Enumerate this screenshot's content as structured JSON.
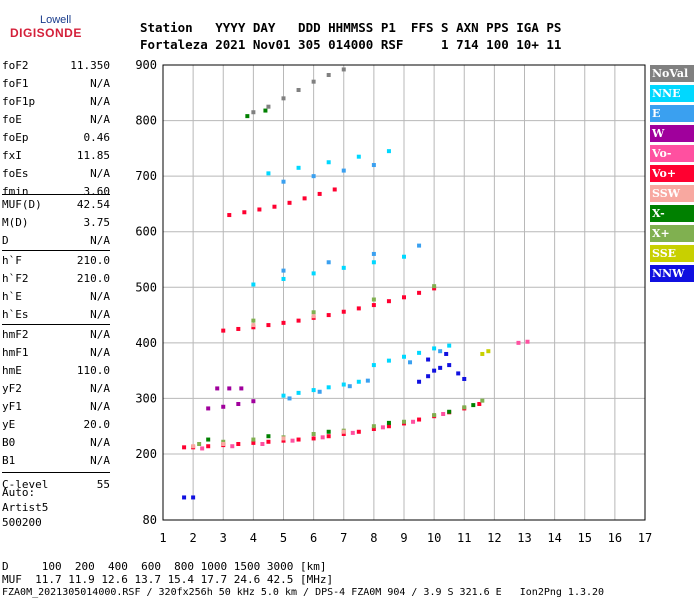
{
  "logo": {
    "top": "Lowell",
    "main": "DIGISONDE"
  },
  "header": {
    "line1": "Station   YYYY DAY   DDD HHMMSS P1  FFS S AXN PPS IGA PS",
    "line2": "Fortaleza 2021 Nov01 305 014000 RSF     1 714 100 10+ 11"
  },
  "params": [
    {
      "name": "foF2",
      "value": "11.350"
    },
    {
      "name": "foF1",
      "value": "N/A"
    },
    {
      "name": "foF1p",
      "value": "N/A"
    },
    {
      "name": "foE",
      "value": "N/A"
    },
    {
      "name": "foEp",
      "value": "0.46"
    },
    {
      "name": "fxI",
      "value": "11.85"
    },
    {
      "name": "foEs",
      "value": "N/A"
    },
    {
      "name": "fmin",
      "value": "3.60"
    },
    {
      "name": "MUF(D)",
      "value": "42.54"
    },
    {
      "name": "M(D)",
      "value": "3.75"
    },
    {
      "name": "D",
      "value": "N/A"
    },
    {
      "name": "h`F",
      "value": "210.0"
    },
    {
      "name": "h`F2",
      "value": "210.0"
    },
    {
      "name": "h`E",
      "value": "N/A"
    },
    {
      "name": "h`Es",
      "value": "N/A"
    },
    {
      "name": "hmF2",
      "value": "N/A"
    },
    {
      "name": "hmF1",
      "value": "N/A"
    },
    {
      "name": "hmE",
      "value": "110.0"
    },
    {
      "name": "yF2",
      "value": "N/A"
    },
    {
      "name": "yF1",
      "value": "N/A"
    },
    {
      "name": "yE",
      "value": "20.0"
    },
    {
      "name": "B0",
      "value": "N/A"
    },
    {
      "name": "B1",
      "value": "N/A"
    },
    {
      "name": "C-level",
      "value": "55"
    }
  ],
  "auto": {
    "label": "Auto:",
    "program": "Artist5",
    "version": "500200"
  },
  "legend": [
    {
      "label": "NoVal",
      "color": "#808080"
    },
    {
      "label": "NNE",
      "color": "#00d8ff"
    },
    {
      "label": "E",
      "color": "#3aa0f0"
    },
    {
      "label": "W",
      "color": "#a0009c"
    },
    {
      "label": "Vo-",
      "color": "#ff50a0"
    },
    {
      "label": "Vo+",
      "color": "#ff0030"
    },
    {
      "label": "SSW",
      "color": "#f8a8a0"
    },
    {
      "label": "X-",
      "color": "#008000"
    },
    {
      "label": "X+",
      "color": "#80b050"
    },
    {
      "label": "SSE",
      "color": "#c8d000"
    },
    {
      "label": "NNW",
      "color": "#1010e0"
    }
  ],
  "bottom": {
    "line1": "D     100  200  400  600  800 1000 1500 3000 [km]",
    "line2": "MUF  11.7 11.9 12.6 13.7 15.4 17.7 24.6 42.5 [MHz]",
    "line3": "FZA0M_2021305014000.RSF / 320fx256h 50 kHz 5.0 km / DPS-4 FZA0M 904 / 3.9 S 321.6 E   Ion2Png 1.3.20"
  },
  "chart_data": {
    "type": "scatter",
    "x_ticks": [
      "1",
      "2",
      "3",
      "4",
      "5",
      "6",
      "7",
      "8",
      "9",
      "10",
      "11",
      "12",
      "13",
      "14",
      "15",
      "16",
      "17"
    ],
    "y_ticks": [
      "80",
      "200",
      "300",
      "400",
      "500",
      "600",
      "700",
      "800",
      "900"
    ],
    "xlim": [
      1,
      17
    ],
    "ylim": [
      80,
      900
    ],
    "grid": true,
    "legend_placement": "right",
    "series": [
      {
        "name": "Vo+",
        "color": "#ff0030",
        "points": [
          [
            1.7,
            212
          ],
          [
            2.0,
            212
          ],
          [
            2.5,
            214
          ],
          [
            3.0,
            216
          ],
          [
            3.5,
            218
          ],
          [
            4.0,
            220
          ],
          [
            4.5,
            222
          ],
          [
            5.0,
            224
          ],
          [
            5.5,
            226
          ],
          [
            6.0,
            228
          ],
          [
            6.5,
            232
          ],
          [
            7.0,
            236
          ],
          [
            7.5,
            240
          ],
          [
            8.0,
            245
          ],
          [
            8.5,
            250
          ],
          [
            9.0,
            255
          ],
          [
            9.5,
            262
          ],
          [
            10.0,
            268
          ],
          [
            10.5,
            275
          ],
          [
            11.0,
            282
          ],
          [
            11.5,
            290
          ],
          [
            3.0,
            422
          ],
          [
            3.5,
            425
          ],
          [
            4.0,
            428
          ],
          [
            4.5,
            432
          ],
          [
            5.0,
            436
          ],
          [
            5.5,
            440
          ],
          [
            6.0,
            445
          ],
          [
            6.5,
            450
          ],
          [
            7.0,
            456
          ],
          [
            7.5,
            462
          ],
          [
            8.0,
            468
          ],
          [
            8.5,
            475
          ],
          [
            9.0,
            482
          ],
          [
            9.5,
            490
          ],
          [
            10.0,
            498
          ],
          [
            3.2,
            630
          ],
          [
            3.7,
            635
          ],
          [
            4.2,
            640
          ],
          [
            4.7,
            645
          ],
          [
            5.2,
            652
          ],
          [
            5.7,
            660
          ],
          [
            6.2,
            668
          ],
          [
            6.7,
            676
          ]
        ]
      },
      {
        "name": "X+",
        "color": "#80b050",
        "points": [
          [
            2.2,
            218
          ],
          [
            3.0,
            222
          ],
          [
            4.0,
            226
          ],
          [
            5.0,
            230
          ],
          [
            6.0,
            236
          ],
          [
            7.0,
            242
          ],
          [
            8.0,
            250
          ],
          [
            9.0,
            258
          ],
          [
            10.0,
            270
          ],
          [
            11.0,
            284
          ],
          [
            11.6,
            296
          ],
          [
            4.0,
            440
          ],
          [
            6.0,
            455
          ],
          [
            8.0,
            478
          ],
          [
            10.0,
            502
          ]
        ]
      },
      {
        "name": "X-",
        "color": "#008000",
        "points": [
          [
            2.5,
            226
          ],
          [
            4.5,
            232
          ],
          [
            6.5,
            240
          ],
          [
            8.5,
            256
          ],
          [
            10.5,
            276
          ],
          [
            11.3,
            288
          ],
          [
            3.8,
            808
          ],
          [
            4.4,
            818
          ]
        ]
      },
      {
        "name": "NNE",
        "color": "#00d8ff",
        "points": [
          [
            5.0,
            305
          ],
          [
            5.5,
            310
          ],
          [
            6.0,
            315
          ],
          [
            6.5,
            320
          ],
          [
            7.0,
            325
          ],
          [
            7.5,
            330
          ],
          [
            8.0,
            360
          ],
          [
            8.5,
            368
          ],
          [
            9.0,
            375
          ],
          [
            9.5,
            382
          ],
          [
            10.0,
            390
          ],
          [
            10.5,
            395
          ],
          [
            4.0,
            505
          ],
          [
            5.0,
            515
          ],
          [
            6.0,
            525
          ],
          [
            7.0,
            535
          ],
          [
            8.0,
            545
          ],
          [
            9.0,
            555
          ],
          [
            4.5,
            705
          ],
          [
            5.5,
            715
          ],
          [
            6.5,
            725
          ],
          [
            7.5,
            735
          ],
          [
            8.5,
            745
          ]
        ]
      },
      {
        "name": "E",
        "color": "#3aa0f0",
        "points": [
          [
            5.2,
            300
          ],
          [
            6.2,
            312
          ],
          [
            7.2,
            322
          ],
          [
            7.8,
            332
          ],
          [
            9.2,
            365
          ],
          [
            10.2,
            385
          ],
          [
            5.0,
            530
          ],
          [
            6.5,
            545
          ],
          [
            8.0,
            560
          ],
          [
            9.5,
            575
          ],
          [
            5.0,
            690
          ],
          [
            6.0,
            700
          ],
          [
            7.0,
            710
          ],
          [
            8.0,
            720
          ]
        ]
      },
      {
        "name": "W",
        "color": "#a0009c",
        "points": [
          [
            2.5,
            282
          ],
          [
            3.0,
            285
          ],
          [
            3.5,
            290
          ],
          [
            4.0,
            295
          ],
          [
            2.8,
            318
          ],
          [
            3.2,
            318
          ],
          [
            3.6,
            318
          ]
        ]
      },
      {
        "name": "NNW",
        "color": "#1010e0",
        "points": [
          [
            9.5,
            330
          ],
          [
            9.8,
            340
          ],
          [
            10.0,
            350
          ],
          [
            10.2,
            355
          ],
          [
            10.5,
            360
          ],
          [
            10.8,
            345
          ],
          [
            11.0,
            335
          ],
          [
            9.8,
            370
          ],
          [
            10.4,
            380
          ],
          [
            1.7,
            121
          ],
          [
            2.0,
            121
          ]
        ]
      },
      {
        "name": "SSE",
        "color": "#c8d000",
        "points": [
          [
            11.6,
            380
          ],
          [
            11.8,
            385
          ]
        ]
      },
      {
        "name": "SSW",
        "color": "#f8a8a0",
        "points": [
          [
            2.0,
            214
          ],
          [
            3.0,
            218
          ],
          [
            5.0,
            228
          ],
          [
            7.0,
            240
          ],
          [
            4.0,
            432
          ],
          [
            6.0,
            448
          ]
        ]
      },
      {
        "name": "Vo-",
        "color": "#ff50a0",
        "points": [
          [
            2.3,
            210
          ],
          [
            3.3,
            214
          ],
          [
            4.3,
            218
          ],
          [
            5.3,
            224
          ],
          [
            6.3,
            230
          ],
          [
            7.3,
            238
          ],
          [
            8.3,
            248
          ],
          [
            9.3,
            258
          ],
          [
            10.3,
            272
          ],
          [
            12.8,
            400
          ],
          [
            13.1,
            402
          ]
        ]
      },
      {
        "name": "NoVal",
        "color": "#808080",
        "points": [
          [
            4.0,
            815
          ],
          [
            4.5,
            825
          ],
          [
            5.0,
            840
          ],
          [
            5.5,
            855
          ],
          [
            6.0,
            870
          ],
          [
            6.5,
            882
          ],
          [
            7.0,
            892
          ]
        ]
      }
    ]
  }
}
